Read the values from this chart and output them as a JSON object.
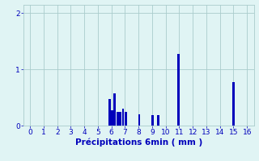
{
  "xlabel": "Précipitations 6min ( mm )",
  "bar_color": "#0000bb",
  "background_color": "#e0f4f4",
  "grid_color": "#aacccc",
  "tick_color": "#0000bb",
  "label_color": "#0000bb",
  "xlim": [
    -0.5,
    16.5
  ],
  "ylim": [
    0,
    2.15
  ],
  "yticks": [
    0,
    1,
    2
  ],
  "xticks": [
    0,
    1,
    2,
    3,
    4,
    5,
    6,
    7,
    8,
    9,
    10,
    11,
    12,
    13,
    14,
    15,
    16
  ],
  "bar_positions": [
    5.85,
    6.05,
    6.25,
    6.45,
    6.65,
    6.85,
    7.05,
    8.05,
    9.05,
    9.45,
    10.95,
    15.0
  ],
  "bar_heights": [
    0.47,
    0.27,
    0.57,
    0.25,
    0.25,
    0.3,
    0.25,
    0.2,
    0.18,
    0.18,
    1.28,
    0.78
  ],
  "bar_width": 0.17
}
